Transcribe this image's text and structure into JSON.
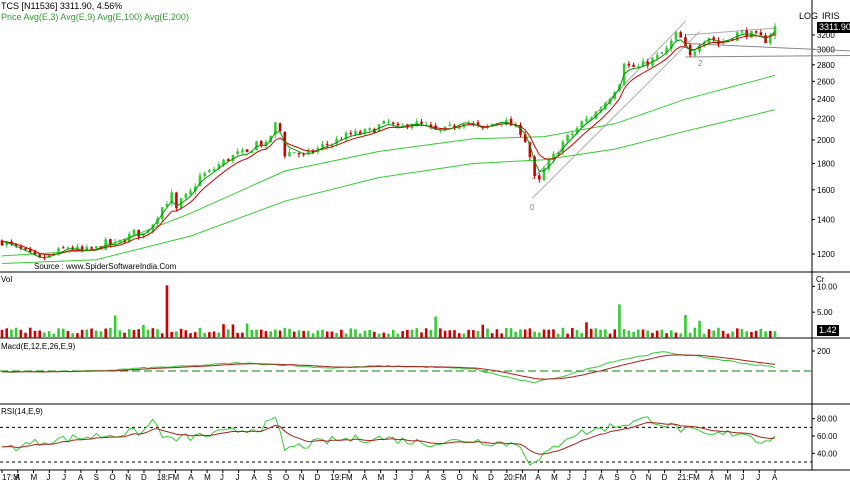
{
  "header": {
    "symbol": "TCS [N11536]",
    "last": "3311.90",
    "change": "4.56%",
    "indicators": "Price Avg(E,3) Avg(E,9) Avg(E,100) Avg(E,200)",
    "log_label": "LOG",
    "iris_label": "IRIS"
  },
  "price_badge": "3311.90",
  "source": "Source : www.SpiderSoftwareIndia.Com",
  "panels": {
    "volume": {
      "label": "Vol",
      "corner": "Cr",
      "badge": "1.42",
      "ticks": [
        "10.00",
        "5.00"
      ]
    },
    "macd": {
      "label": "Macd(E,12,E,26,E,9)",
      "ticks": [
        "200"
      ]
    },
    "rsi": {
      "label": "RSI(14,E,9)",
      "ticks": [
        "80.00",
        "60.00",
        "40.00"
      ]
    }
  },
  "pattern_labels": [
    "0",
    "2"
  ],
  "colors": {
    "up": "#33cc33",
    "down": "#cc0000",
    "avg_fast": "#ff0000",
    "avg_slow": "#009900",
    "signal": "#008800"
  },
  "chart_data": {
    "type": "candlestick",
    "title": "",
    "scale": "log",
    "ylim": [
      1100,
      3400
    ],
    "yticks": [
      1200,
      1400,
      1600,
      1800,
      2000,
      2200,
      2400,
      2600,
      2800,
      3000,
      3200
    ],
    "x_tick_labels": [
      "17:M",
      "A",
      "M",
      "J",
      "J",
      "A",
      "S",
      "O",
      "N",
      "D",
      "18:F",
      "M",
      "A",
      "M",
      "J",
      "J",
      "A",
      "S",
      "O",
      "N",
      "D",
      "19:F",
      "M",
      "A",
      "M",
      "J",
      "J",
      "A",
      "S",
      "O",
      "N",
      "D",
      "20:F",
      "M",
      "A",
      "M",
      "J",
      "J",
      "A",
      "S",
      "O",
      "N",
      "D",
      "21:F",
      "M",
      "A",
      "M",
      "J",
      "J",
      "A"
    ],
    "close_path": [
      [
        0,
        1270
      ],
      [
        8,
        1220
      ],
      [
        16,
        1170
      ],
      [
        22,
        1200
      ],
      [
        28,
        1240
      ],
      [
        34,
        1215
      ],
      [
        40,
        1230
      ],
      [
        44,
        1260
      ],
      [
        48,
        1250
      ],
      [
        52,
        1285
      ],
      [
        56,
        1320
      ],
      [
        60,
        1310
      ],
      [
        64,
        1380
      ],
      [
        68,
        1480
      ],
      [
        72,
        1560
      ],
      [
        74,
        1460
      ],
      [
        76,
        1520
      ],
      [
        80,
        1580
      ],
      [
        84,
        1700
      ],
      [
        88,
        1730
      ],
      [
        92,
        1790
      ],
      [
        96,
        1840
      ],
      [
        100,
        1880
      ],
      [
        104,
        1880
      ],
      [
        108,
        1980
      ],
      [
        112,
        1950
      ],
      [
        116,
        2140
      ],
      [
        118,
        2080
      ],
      [
        120,
        1880
      ],
      [
        124,
        1900
      ],
      [
        128,
        1860
      ],
      [
        132,
        1900
      ],
      [
        136,
        1950
      ],
      [
        140,
        1970
      ],
      [
        144,
        2020
      ],
      [
        148,
        2050
      ],
      [
        152,
        2060
      ],
      [
        156,
        2080
      ],
      [
        160,
        2130
      ],
      [
        164,
        2160
      ],
      [
        168,
        2100
      ],
      [
        172,
        2150
      ],
      [
        176,
        2150
      ],
      [
        180,
        2120
      ],
      [
        184,
        2080
      ],
      [
        188,
        2090
      ],
      [
        192,
        2130
      ],
      [
        196,
        2180
      ],
      [
        200,
        2140
      ],
      [
        204,
        2090
      ],
      [
        208,
        2150
      ],
      [
        212,
        2180
      ],
      [
        216,
        2140
      ],
      [
        220,
        2080
      ],
      [
        223,
        1960
      ],
      [
        225,
        1750
      ],
      [
        227,
        1610
      ],
      [
        230,
        1750
      ],
      [
        234,
        1860
      ],
      [
        238,
        1980
      ],
      [
        242,
        2060
      ],
      [
        246,
        2160
      ],
      [
        250,
        2220
      ],
      [
        254,
        2310
      ],
      [
        258,
        2430
      ],
      [
        262,
        2600
      ],
      [
        264,
        2850
      ],
      [
        266,
        2780
      ],
      [
        270,
        2770
      ],
      [
        274,
        2830
      ],
      [
        278,
        2900
      ],
      [
        282,
        3000
      ],
      [
        286,
        3200
      ],
      [
        288,
        3150
      ],
      [
        290,
        3010
      ],
      [
        292,
        2900
      ],
      [
        296,
        3100
      ],
      [
        300,
        3180
      ],
      [
        304,
        3080
      ],
      [
        308,
        3140
      ],
      [
        312,
        3220
      ],
      [
        316,
        3230
      ],
      [
        320,
        3180
      ],
      [
        324,
        3130
      ],
      [
        328,
        3311.9
      ]
    ],
    "avg_100": [
      [
        0,
        1190
      ],
      [
        40,
        1220
      ],
      [
        80,
        1440
      ],
      [
        120,
        1740
      ],
      [
        160,
        1900
      ],
      [
        200,
        2010
      ],
      [
        230,
        2030
      ],
      [
        260,
        2150
      ],
      [
        290,
        2400
      ],
      [
        328,
        2670
      ]
    ],
    "avg_200": [
      [
        0,
        1150
      ],
      [
        40,
        1170
      ],
      [
        80,
        1300
      ],
      [
        120,
        1520
      ],
      [
        160,
        1690
      ],
      [
        200,
        1800
      ],
      [
        230,
        1830
      ],
      [
        260,
        1920
      ],
      [
        290,
        2080
      ],
      [
        328,
        2290
      ]
    ],
    "volume": {
      "ylim": [
        0,
        12
      ],
      "ticks": [
        5,
        10
      ],
      "spike_day_index": 70,
      "spike_value": 10.2,
      "second_spike_index": 262,
      "second_spike_value": 6.5,
      "last": 1.42
    },
    "macd": {
      "ticks": [
        200
      ],
      "path": [
        [
          0,
          -10
        ],
        [
          40,
          0
        ],
        [
          60,
          30
        ],
        [
          80,
          50
        ],
        [
          100,
          80
        ],
        [
          120,
          60
        ],
        [
          140,
          30
        ],
        [
          160,
          50
        ],
        [
          180,
          40
        ],
        [
          200,
          20
        ],
        [
          225,
          -120
        ],
        [
          240,
          -40
        ],
        [
          260,
          100
        ],
        [
          280,
          190
        ],
        [
          300,
          130
        ],
        [
          320,
          60
        ],
        [
          328,
          40
        ]
      ]
    },
    "rsi": {
      "ticks": [
        40,
        60,
        80
      ],
      "levels": [
        30,
        70
      ],
      "path": [
        [
          0,
          45
        ],
        [
          20,
          55
        ],
        [
          40,
          60
        ],
        [
          60,
          65
        ],
        [
          64,
          78
        ],
        [
          70,
          55
        ],
        [
          90,
          62
        ],
        [
          110,
          70
        ],
        [
          116,
          78
        ],
        [
          120,
          45
        ],
        [
          140,
          55
        ],
        [
          160,
          58
        ],
        [
          180,
          52
        ],
        [
          200,
          55
        ],
        [
          220,
          50
        ],
        [
          225,
          25
        ],
        [
          240,
          60
        ],
        [
          260,
          72
        ],
        [
          275,
          80
        ],
        [
          285,
          70
        ],
        [
          300,
          60
        ],
        [
          315,
          65
        ],
        [
          320,
          55
        ],
        [
          328,
          58
        ]
      ]
    }
  }
}
